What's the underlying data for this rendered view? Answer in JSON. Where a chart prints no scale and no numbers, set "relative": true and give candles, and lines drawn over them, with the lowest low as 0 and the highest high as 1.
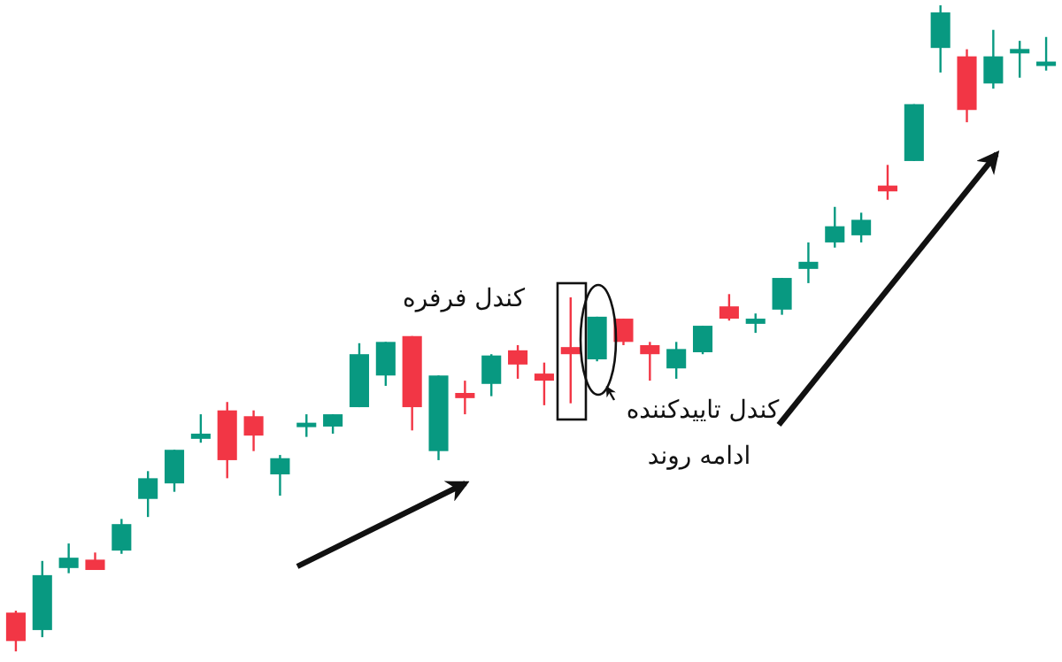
{
  "chart_data": {
    "type": "candlestick",
    "relative": true,
    "categories": [
      null,
      null,
      null,
      null,
      null,
      null,
      null,
      null,
      null,
      null,
      null,
      null,
      null,
      null,
      null,
      null,
      null,
      null,
      null,
      null,
      null,
      null,
      null,
      null,
      null,
      null,
      null,
      null,
      null,
      null,
      null,
      null,
      null,
      null,
      null,
      null,
      null,
      null,
      null,
      null
    ],
    "ohlc": [
      [
        0.06,
        0.063,
        0,
        0.016
      ],
      [
        0.033,
        0.14,
        0.022,
        0.118
      ],
      [
        0.129,
        0.167,
        0.121,
        0.145
      ],
      [
        0.142,
        0.153,
        0.126,
        0.126
      ],
      [
        0.156,
        0.205,
        0.151,
        0.197
      ],
      [
        0.236,
        0.279,
        0.208,
        0.268
      ],
      [
        0.26,
        0.312,
        0.247,
        0.312
      ],
      [
        0.329,
        0.367,
        0.323,
        0.337
      ],
      [
        0.373,
        0.386,
        0.268,
        0.296
      ],
      [
        0.364,
        0.373,
        0.31,
        0.334
      ],
      [
        0.274,
        0.304,
        0.241,
        0.299
      ],
      [
        0.348,
        0.367,
        0.332,
        0.353
      ],
      [
        0.348,
        0.367,
        0.337,
        0.367
      ],
      [
        0.378,
        0.477,
        0.378,
        0.46
      ],
      [
        0.427,
        0.479,
        0.411,
        0.479
      ],
      [
        0.488,
        0.488,
        0.342,
        0.378
      ],
      [
        0.31,
        0.427,
        0.296,
        0.427
      ],
      [
        0.4,
        0.419,
        0.367,
        0.392
      ],
      [
        0.414,
        0.46,
        0.395,
        0.458
      ],
      [
        0.466,
        0.474,
        0.422,
        0.444
      ],
      [
        0.43,
        0.447,
        0.381,
        0.419
      ],
      [
        0.471,
        0.548,
        0.384,
        0.46
      ],
      [
        0.452,
        0.518,
        0.449,
        0.518
      ],
      [
        0.515,
        0.515,
        0.474,
        0.479
      ],
      [
        0.474,
        0.479,
        0.419,
        0.46
      ],
      [
        0.438,
        0.479,
        0.422,
        0.468
      ],
      [
        0.463,
        0.504,
        0.46,
        0.504
      ],
      [
        0.534,
        0.553,
        0.512,
        0.515
      ],
      [
        0.507,
        0.523,
        0.493,
        0.515
      ],
      [
        0.529,
        0.578,
        0.521,
        0.578
      ],
      [
        0.592,
        0.633,
        0.57,
        0.603
      ],
      [
        0.633,
        0.688,
        0.625,
        0.658
      ],
      [
        0.644,
        0.679,
        0.633,
        0.668
      ],
      [
        0.721,
        0.753,
        0.699,
        0.712
      ],
      [
        0.759,
        0.847,
        0.759,
        0.847
      ],
      [
        0.934,
        1,
        0.896,
        0.989
      ],
      [
        0.921,
        0.932,
        0.819,
        0.838
      ],
      [
        0.879,
        0.962,
        0.871,
        0.921
      ],
      [
        0.926,
        0.945,
        0.888,
        0.932
      ],
      [
        0.907,
        0.951,
        0.899,
        0.912
      ]
    ],
    "colors": [
      "#f23645",
      "#089981",
      "#089981",
      "#f23645",
      "#089981",
      "#089981",
      "#089981",
      "#089981",
      "#f23645",
      "#f23645",
      "#089981",
      "#089981",
      "#089981",
      "#089981",
      "#089981",
      "#f23645",
      "#089981",
      "#f23645",
      "#089981",
      "#f23645",
      "#f23645",
      "#f23645",
      "#089981",
      "#f23645",
      "#f23645",
      "#089981",
      "#089981",
      "#f23645",
      "#089981",
      "#089981",
      "#089981",
      "#089981",
      "#089981",
      "#f23645",
      "#089981",
      "#089981",
      "#f23645",
      "#089981",
      "#089981",
      "#089981"
    ],
    "annotations": [
      "کندل فرفره",
      "کندل تاییدکننده",
      "ادامه روند"
    ]
  }
}
